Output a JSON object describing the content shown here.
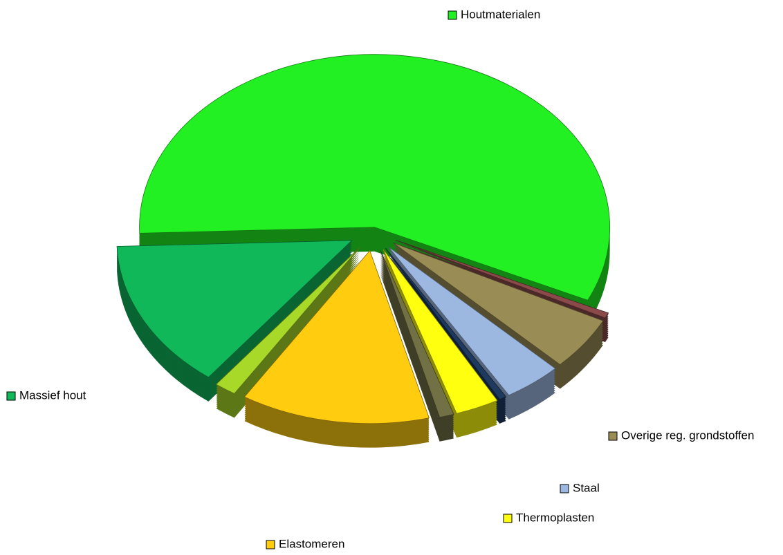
{
  "chart_data": {
    "type": "pie",
    "categories": [
      "Houtmaterialen",
      null,
      "Overige reg. grondstoffen",
      "Staal",
      null,
      "Thermoplasten",
      null,
      "Elastomeren",
      null,
      "Massief hout"
    ],
    "values": [
      57.5,
      0.5,
      5,
      4,
      0.5,
      3,
      1,
      13,
      1.5,
      14
    ],
    "colors": [
      "#22f022",
      "#8a4a4a",
      "#9a8c55",
      "#9cb8e0",
      "#1e3a5e",
      "#ffff10",
      "#727045",
      "#ffcc10",
      "#a8d828",
      "#10b85a"
    ]
  }
}
